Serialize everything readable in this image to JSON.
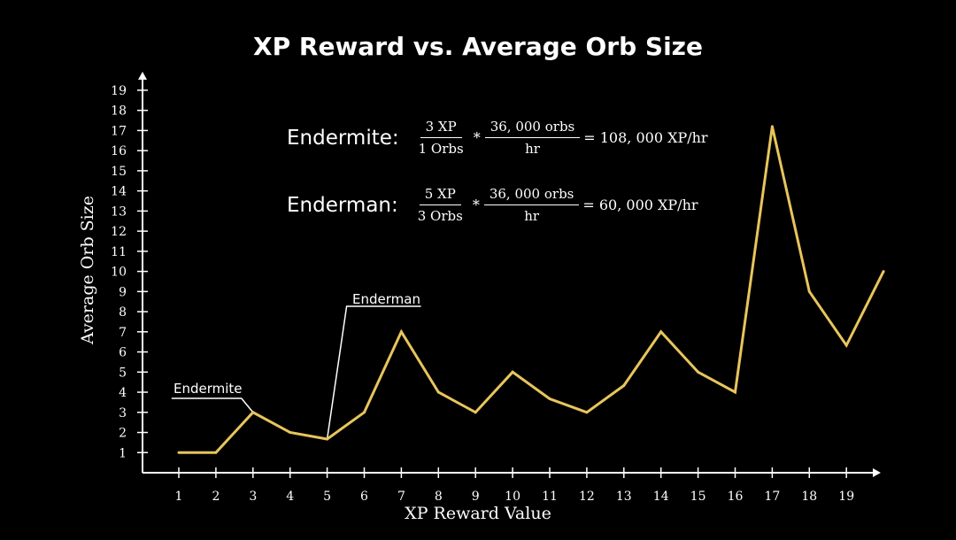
{
  "chart_data": {
    "type": "line",
    "title": "XP Reward vs. Average Orb Size",
    "xlabel": "XP Reward Value",
    "ylabel": "Average Orb Size",
    "x": [
      1,
      2,
      3,
      4,
      5,
      6,
      7,
      8,
      9,
      10,
      11,
      12,
      13,
      14,
      15,
      16,
      17,
      18,
      19,
      20
    ],
    "series": [
      {
        "values": [
          1,
          1,
          3,
          2,
          1.67,
          3,
          7,
          4,
          3,
          5,
          3.67,
          3,
          4.33,
          7,
          5,
          4,
          17.2,
          9,
          6.33,
          10
        ]
      }
    ],
    "xticks": [
      "1",
      "2",
      "3",
      "4",
      "5",
      "6",
      "7",
      "8",
      "9",
      "10",
      "11",
      "12",
      "13",
      "14",
      "15",
      "16",
      "17",
      "18",
      "19"
    ],
    "yticks": [
      "1",
      "2",
      "3",
      "4",
      "5",
      "6",
      "7",
      "8",
      "9",
      "10",
      "11",
      "12",
      "13",
      "14",
      "15",
      "16",
      "17",
      "18",
      "19"
    ],
    "xlim": [
      0.5,
      20
    ],
    "ylim": [
      0,
      19
    ],
    "grid": false,
    "colors": {
      "line": "#e8c55c",
      "background": "#000000",
      "axes": "#ffffff"
    },
    "annotations": [
      {
        "text": "Endermite",
        "x": 3,
        "y": 3
      },
      {
        "text": "Enderman",
        "x": 5,
        "y": 1.67
      }
    ]
  },
  "equations": [
    {
      "label": "Endermite:",
      "frac1": {
        "num": "3 XP",
        "den": "1 Orbs"
      },
      "op": "*",
      "frac2": {
        "num": "36, 000 orbs",
        "den": "hr"
      },
      "result": "= 108, 000 XP/hr"
    },
    {
      "label": "Enderman:",
      "frac1": {
        "num": "5 XP",
        "den": "3 Orbs"
      },
      "op": "*",
      "frac2": {
        "num": "36, 000 orbs",
        "den": "hr"
      },
      "result": "= 60, 000 XP/hr"
    }
  ]
}
